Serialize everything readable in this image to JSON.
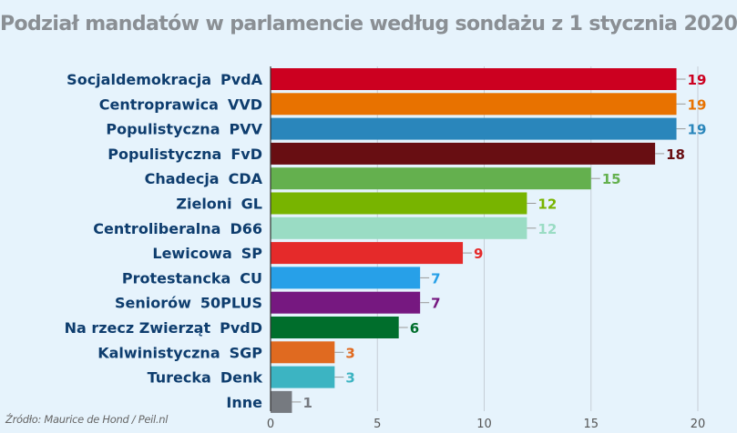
{
  "chart_data": {
    "type": "bar",
    "orientation": "horizontal",
    "title": "Podział mandatów w parlamencie według sondażu z 1 stycznia 2020",
    "source": "Źródło: Maurice de Hond / Peil.nl",
    "categories": [
      {
        "label": "Socjaldemokracja",
        "party": "PvdA"
      },
      {
        "label": "Centroprawica",
        "party": "VVD"
      },
      {
        "label": "Populistyczna",
        "party": "PVV"
      },
      {
        "label": "Populistyczna",
        "party": "FvD"
      },
      {
        "label": "Chadecja",
        "party": "CDA"
      },
      {
        "label": "Zieloni",
        "party": "GL"
      },
      {
        "label": "Centroliberalna",
        "party": "D66"
      },
      {
        "label": "Lewicowa",
        "party": "SP"
      },
      {
        "label": "Protestancka",
        "party": "CU"
      },
      {
        "label": "Seniorów",
        "party": "50PLUS"
      },
      {
        "label": "Na rzecz Zwierząt",
        "party": "PvdD"
      },
      {
        "label": "Kalwinistyczna",
        "party": "SGP"
      },
      {
        "label": "Turecka",
        "party": "Denk"
      },
      {
        "label": "Inne",
        "party": ""
      }
    ],
    "values": [
      19,
      19,
      19,
      18,
      15,
      12,
      12,
      9,
      7,
      7,
      6,
      3,
      3,
      1
    ],
    "colors": [
      "#cc0020",
      "#e87200",
      "#2a86bb",
      "#680e12",
      "#64b04e",
      "#78b400",
      "#9adcc4",
      "#e52a2a",
      "#27a0e8",
      "#761880",
      "#006e2c",
      "#e06a20",
      "#3cb4c2",
      "#767a80"
    ],
    "xlim": [
      0,
      20
    ],
    "xticks": [
      "0",
      "5",
      "10",
      "15",
      "20"
    ],
    "grid": true,
    "legend": "none"
  }
}
